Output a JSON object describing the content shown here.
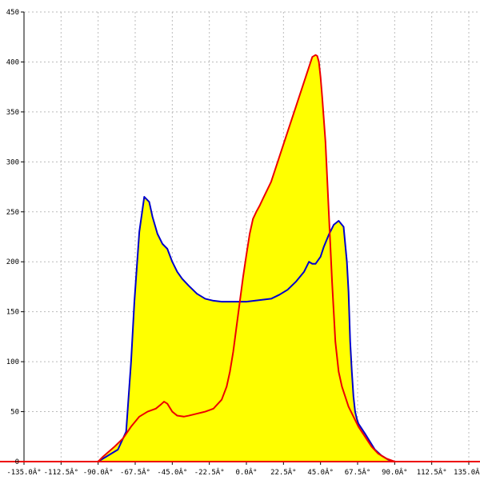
{
  "chart_data": {
    "type": "area",
    "title": "",
    "xlabel": "",
    "ylabel": "",
    "xlim": [
      -135,
      135
    ],
    "ylim": [
      0,
      450
    ],
    "grid": true,
    "x_ticks": [
      {
        "value": -135,
        "label": "-135.0Â°"
      },
      {
        "value": -112.5,
        "label": "-112.5Â°"
      },
      {
        "value": -90,
        "label": "-90.0Â°"
      },
      {
        "value": -67.5,
        "label": "-67.5Â°"
      },
      {
        "value": -45,
        "label": "-45.0Â°"
      },
      {
        "value": -22.5,
        "label": "-22.5Â°"
      },
      {
        "value": 0,
        "label": "0.0Â°"
      },
      {
        "value": 22.5,
        "label": "22.5Â°"
      },
      {
        "value": 45,
        "label": "45.0Â°"
      },
      {
        "value": 67.5,
        "label": "67.5Â°"
      },
      {
        "value": 90,
        "label": "90.0Â°"
      },
      {
        "value": 112.5,
        "label": "112.5Â°"
      },
      {
        "value": 135,
        "label": "135.0Â°"
      }
    ],
    "y_ticks": [
      {
        "value": 0,
        "label": "0"
      },
      {
        "value": 50,
        "label": "50"
      },
      {
        "value": 100,
        "label": "100"
      },
      {
        "value": 150,
        "label": "150"
      },
      {
        "value": 200,
        "label": "200"
      },
      {
        "value": 250,
        "label": "250"
      },
      {
        "value": 300,
        "label": "300"
      },
      {
        "value": 350,
        "label": "350"
      },
      {
        "value": 400,
        "label": "400"
      },
      {
        "value": 450,
        "label": "450"
      }
    ],
    "colors": {
      "fill": "#ffff00",
      "blue_series": "#0000cc",
      "red_series": "#ee0000",
      "grid": "#bbbbbb",
      "axis": "#000000"
    },
    "series": [
      {
        "color_key": "blue_series",
        "x": [
          -135,
          -90,
          -85,
          -78,
          -73,
          -70,
          -68,
          -65,
          -62,
          -59,
          -57,
          -54,
          -51,
          -48,
          -45,
          -42,
          -39,
          -35,
          -30,
          -25,
          -20,
          -15,
          -10,
          -5,
          0,
          5,
          10,
          15,
          20,
          25,
          30,
          35,
          38,
          40,
          42,
          45,
          47,
          50,
          53,
          56,
          59,
          61,
          62,
          63,
          64,
          65,
          66,
          67,
          68,
          70,
          72,
          75,
          78,
          82,
          86,
          90,
          135
        ],
        "y": [
          0,
          0,
          5,
          12,
          30,
          100,
          160,
          230,
          265,
          260,
          245,
          228,
          218,
          213,
          200,
          190,
          183,
          176,
          168,
          163,
          161,
          160,
          160,
          160,
          160,
          161,
          162,
          163,
          167,
          172,
          180,
          190,
          200,
          198,
          198,
          205,
          215,
          227,
          237,
          241,
          235,
          200,
          170,
          120,
          90,
          65,
          50,
          43,
          38,
          33,
          28,
          20,
          12,
          6,
          2,
          0,
          0
        ]
      },
      {
        "color_key": "red_series",
        "x": [
          -135,
          -90,
          -87,
          -80,
          -75,
          -70,
          -65,
          -60,
          -55,
          -52,
          -50,
          -48,
          -45,
          -42,
          -38,
          -35,
          -30,
          -25,
          -20,
          -15,
          -12,
          -10,
          -8,
          -6,
          -4,
          -2,
          0,
          2,
          4,
          6,
          8,
          10,
          15,
          20,
          25,
          30,
          35,
          38,
          40,
          42,
          43,
          44,
          45,
          46,
          48,
          50,
          52,
          54,
          56,
          58,
          60,
          62,
          65,
          68,
          72,
          76,
          80,
          85,
          90,
          135
        ],
        "y": [
          0,
          0,
          5,
          15,
          23,
          35,
          45,
          50,
          53,
          57,
          60,
          58,
          50,
          46,
          45,
          46,
          48,
          50,
          53,
          62,
          75,
          90,
          110,
          135,
          160,
          185,
          207,
          228,
          243,
          250,
          256,
          263,
          280,
          305,
          330,
          355,
          380,
          395,
          405,
          407,
          406,
          400,
          385,
          365,
          320,
          250,
          180,
          120,
          90,
          75,
          65,
          55,
          45,
          35,
          25,
          15,
          8,
          3,
          0,
          0
        ]
      }
    ]
  }
}
